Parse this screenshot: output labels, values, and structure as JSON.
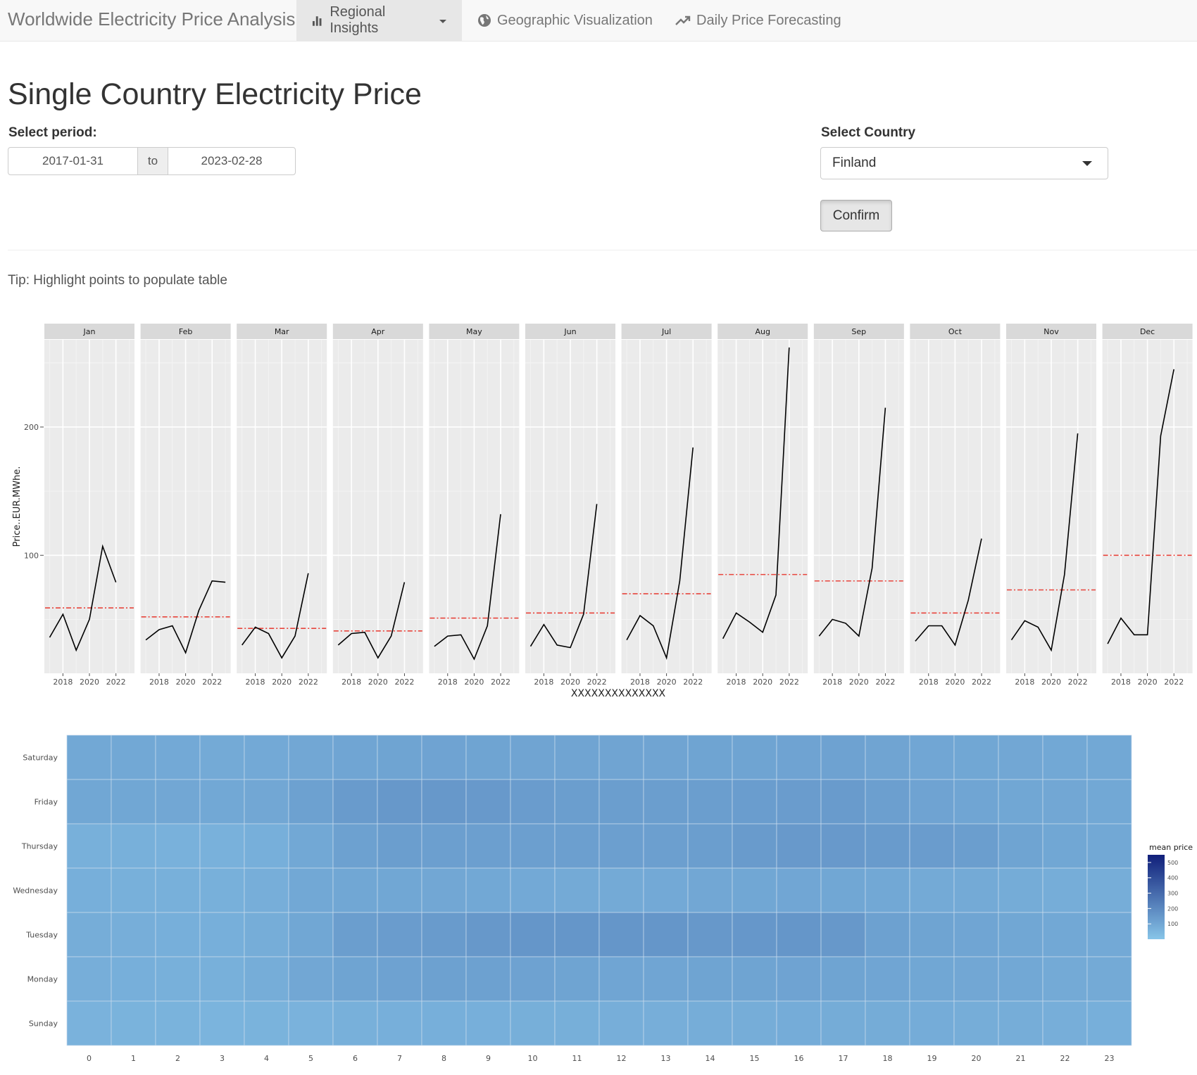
{
  "navbar": {
    "brand": "Worldwide Electricity Price Analysis",
    "tabs": [
      {
        "label": "Regional Insights",
        "icon": "bar-chart-icon",
        "active": true,
        "dropdown": true
      },
      {
        "label": "Geographic Visualization",
        "icon": "globe-icon"
      },
      {
        "label": "Daily Price Forecasting",
        "icon": "trend-up-icon"
      }
    ]
  },
  "main": {
    "title": "Single Country Electricity Price",
    "period": {
      "label": "Select period:",
      "start": "2017-01-31",
      "separator": "to",
      "end": "2023-02-28"
    },
    "country": {
      "label": "Select Country",
      "selected": "Finland"
    },
    "confirm_label": "Confirm",
    "tip": "Tip: Highlight points to populate table"
  },
  "chart_data": [
    {
      "type": "line",
      "facets": [
        "Jan",
        "Feb",
        "Mar",
        "Apr",
        "May",
        "Jun",
        "Jul",
        "Aug",
        "Sep",
        "Oct",
        "Nov",
        "Dec"
      ],
      "x": [
        2017,
        2018,
        2019,
        2020,
        2021,
        2022,
        2023
      ],
      "x_ticks": [
        2018,
        2020,
        2022
      ],
      "y_ticks": [
        100,
        200
      ],
      "ylim": [
        8,
        268
      ],
      "ylabel": "Price..EUR.MWhe.",
      "xlabel": "XXXXXXXXXXXXXX",
      "series": [
        {
          "facet": "Jan",
          "x": [
            2017,
            2018,
            2019,
            2020,
            2021,
            2022
          ],
          "values": [
            36,
            54,
            26,
            50,
            107,
            79
          ],
          "mean": 59
        },
        {
          "facet": "Feb",
          "x": [
            2017,
            2018,
            2019,
            2020,
            2021,
            2022,
            2023
          ],
          "values": [
            34,
            42,
            45,
            24,
            57,
            80,
            79
          ],
          "mean": 52
        },
        {
          "facet": "Mar",
          "x": [
            2017,
            2018,
            2019,
            2020,
            2021,
            2022
          ],
          "values": [
            30,
            44,
            39,
            20,
            37,
            86
          ],
          "mean": 43
        },
        {
          "facet": "Apr",
          "x": [
            2017,
            2018,
            2019,
            2020,
            2021,
            2022
          ],
          "values": [
            30,
            39,
            40,
            20,
            37,
            79
          ],
          "mean": 41
        },
        {
          "facet": "May",
          "x": [
            2017,
            2018,
            2019,
            2020,
            2021,
            2022
          ],
          "values": [
            29,
            37,
            38,
            19,
            45,
            132
          ],
          "mean": 51
        },
        {
          "facet": "Jun",
          "x": [
            2017,
            2018,
            2019,
            2020,
            2021,
            2022
          ],
          "values": [
            29,
            46,
            30,
            28,
            54,
            140
          ],
          "mean": 55
        },
        {
          "facet": "Jul",
          "x": [
            2017,
            2018,
            2019,
            2020,
            2021,
            2022
          ],
          "values": [
            34,
            53,
            45,
            20,
            80,
            184
          ],
          "mean": 70
        },
        {
          "facet": "Aug",
          "x": [
            2017,
            2018,
            2019,
            2020,
            2021,
            2022
          ],
          "values": [
            35,
            55,
            48,
            40,
            69,
            262
          ],
          "mean": 85
        },
        {
          "facet": "Sep",
          "x": [
            2017,
            2018,
            2019,
            2020,
            2021,
            2022
          ],
          "values": [
            37,
            50,
            47,
            37,
            90,
            215
          ],
          "mean": 80
        },
        {
          "facet": "Oct",
          "x": [
            2017,
            2018,
            2019,
            2020,
            2021,
            2022
          ],
          "values": [
            33,
            45,
            45,
            30,
            65,
            113
          ],
          "mean": 55
        },
        {
          "facet": "Nov",
          "x": [
            2017,
            2018,
            2019,
            2020,
            2021,
            2022
          ],
          "values": [
            34,
            49,
            44,
            26,
            85,
            195
          ],
          "mean": 73
        },
        {
          "facet": "Dec",
          "x": [
            2017,
            2018,
            2019,
            2020,
            2021,
            2022
          ],
          "values": [
            31,
            51,
            38,
            38,
            193,
            245
          ],
          "mean": 100
        }
      ],
      "colors": {
        "line": "#000000",
        "mean_line": "#e8453c",
        "panel": "#ebebeb",
        "strip": "#d9d9d9"
      }
    },
    {
      "type": "heatmap",
      "x": [
        0,
        1,
        2,
        3,
        4,
        5,
        6,
        7,
        8,
        9,
        10,
        11,
        12,
        13,
        14,
        15,
        16,
        17,
        18,
        19,
        20,
        21,
        22,
        23
      ],
      "y": [
        "Saturday",
        "Friday",
        "Thursday",
        "Wednesday",
        "Tuesday",
        "Monday",
        "Sunday"
      ],
      "values": [
        [
          95,
          95,
          92,
          90,
          92,
          98,
          105,
          110,
          112,
          110,
          108,
          108,
          108,
          108,
          110,
          110,
          112,
          115,
          108,
          102,
          100,
          98,
          97,
          96
        ],
        [
          100,
          100,
          98,
          95,
          98,
          120,
          140,
          150,
          150,
          145,
          135,
          130,
          128,
          128,
          130,
          132,
          135,
          138,
          125,
          112,
          105,
          100,
          98,
          97
        ],
        [
          70,
          68,
          66,
          66,
          72,
          95,
          120,
          130,
          125,
          125,
          125,
          125,
          125,
          125,
          128,
          140,
          145,
          145,
          140,
          135,
          130,
          110,
          100,
          95
        ],
        [
          72,
          70,
          68,
          68,
          75,
          95,
          100,
          100,
          98,
          95,
          92,
          90,
          90,
          92,
          98,
          100,
          102,
          100,
          95,
          90,
          88,
          84,
          80,
          78
        ],
        [
          78,
          75,
          72,
          72,
          80,
          100,
          130,
          135,
          140,
          150,
          155,
          155,
          155,
          155,
          150,
          152,
          155,
          150,
          120,
          110,
          105,
          100,
          95,
          92
        ],
        [
          75,
          72,
          70,
          70,
          78,
          98,
          110,
          115,
          120,
          118,
          115,
          110,
          105,
          105,
          110,
          110,
          112,
          110,
          105,
          100,
          98,
          95,
          90,
          88
        ],
        [
          62,
          60,
          58,
          56,
          58,
          62,
          68,
          72,
          72,
          72,
          74,
          74,
          76,
          76,
          78,
          80,
          82,
          84,
          84,
          82,
          80,
          78,
          75,
          72
        ]
      ],
      "legend": {
        "title": "mean price",
        "ticks": [
          100,
          200,
          300,
          400,
          500
        ],
        "range": [
          0,
          550
        ],
        "position": "right"
      },
      "colors": {
        "low": "#87c5e8",
        "high": "#101f7a"
      }
    }
  ]
}
